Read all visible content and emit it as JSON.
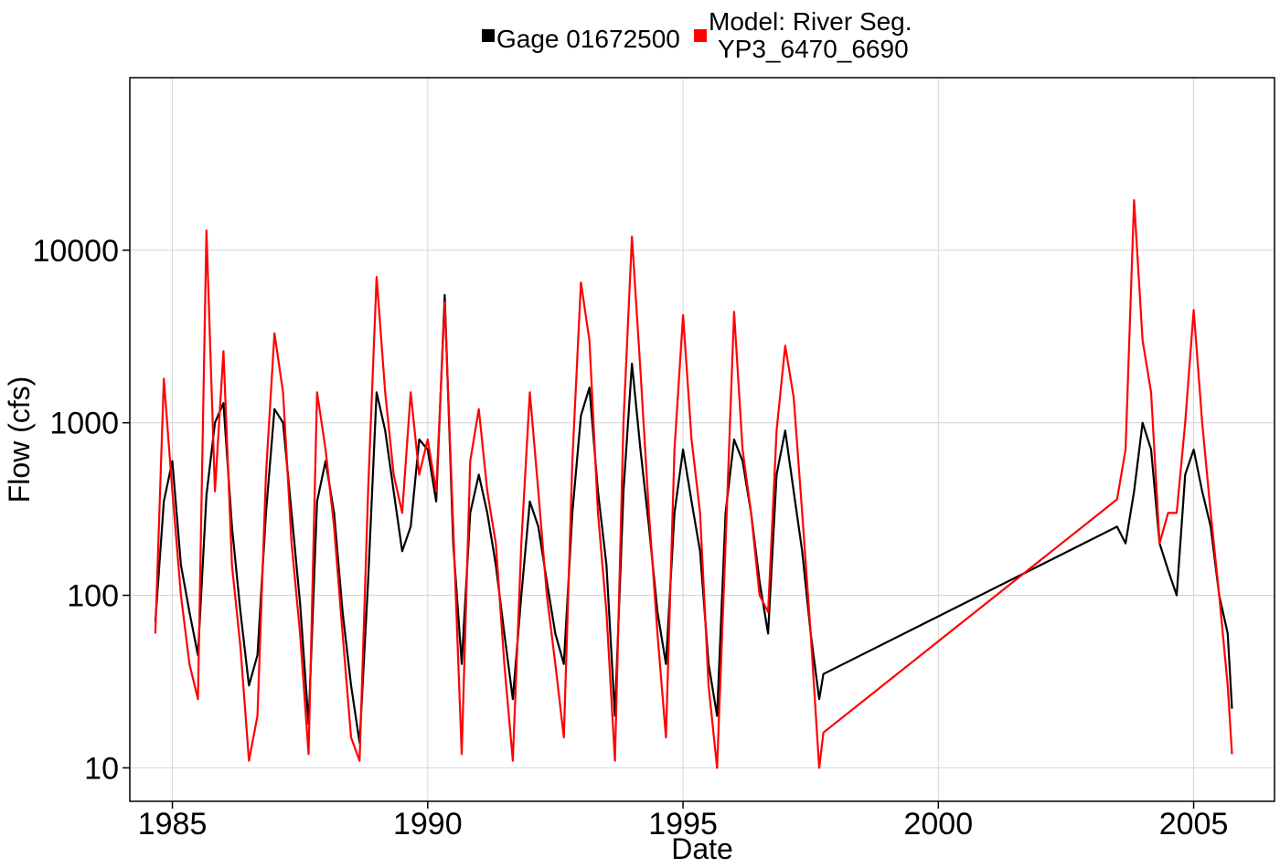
{
  "chart_data": {
    "type": "line",
    "title": "",
    "xlabel": "Date",
    "ylabel": "Flow (cfs)",
    "x_ticks": [
      "1985",
      "1990",
      "1995",
      "2000",
      "2005"
    ],
    "y_ticks": [
      "10",
      "100",
      "1000",
      "10000"
    ],
    "y_scale": "log",
    "ylim": [
      6.4,
      100000
    ],
    "xlim": [
      "1984-03-01",
      "2006-08-01"
    ],
    "grid": true,
    "legend_position": "top",
    "series": [
      {
        "name": "Gage 01672500",
        "color": "#000000",
        "x": [
          "1984-09-01",
          "1984-11-01",
          "1985-01-01",
          "1985-03-01",
          "1985-05-01",
          "1985-07-01",
          "1985-09-01",
          "1985-11-01",
          "1986-01-01",
          "1986-03-01",
          "1986-05-01",
          "1986-07-01",
          "1986-09-01",
          "1986-11-01",
          "1987-01-01",
          "1987-03-01",
          "1987-05-01",
          "1987-07-01",
          "1987-09-01",
          "1987-11-01",
          "1988-01-01",
          "1988-03-01",
          "1988-05-01",
          "1988-07-01",
          "1988-09-01",
          "1988-11-01",
          "1989-01-01",
          "1989-03-01",
          "1989-05-01",
          "1989-07-01",
          "1989-09-01",
          "1989-11-01",
          "1990-01-01",
          "1990-03-01",
          "1990-05-01",
          "1990-07-01",
          "1990-09-01",
          "1990-11-01",
          "1991-01-01",
          "1991-03-01",
          "1991-05-01",
          "1991-07-01",
          "1991-09-01",
          "1991-11-01",
          "1992-01-01",
          "1992-03-01",
          "1992-05-01",
          "1992-07-01",
          "1992-09-01",
          "1992-11-01",
          "1993-01-01",
          "1993-03-01",
          "1993-05-01",
          "1993-07-01",
          "1993-09-01",
          "1993-11-01",
          "1994-01-01",
          "1994-03-01",
          "1994-05-01",
          "1994-07-01",
          "1994-09-01",
          "1994-11-01",
          "1995-01-01",
          "1995-03-01",
          "1995-05-01",
          "1995-07-01",
          "1995-09-01",
          "1995-11-01",
          "1996-01-01",
          "1996-03-01",
          "1996-05-01",
          "1996-07-01",
          "1996-09-01",
          "1996-11-01",
          "1997-01-01",
          "1997-03-01",
          "1997-05-01",
          "1997-07-01",
          "1997-09-01",
          "1997-10-01",
          "2003-07-01",
          "2003-09-01",
          "2003-11-01",
          "2004-01-01",
          "2004-03-01",
          "2004-05-01",
          "2004-07-01",
          "2004-09-01",
          "2004-11-01",
          "2005-01-01",
          "2005-03-01",
          "2005-05-01",
          "2005-07-01",
          "2005-09-01",
          "2005-10-01"
        ],
        "y": [
          70,
          350,
          600,
          150,
          80,
          45,
          380,
          1000,
          1300,
          250,
          80,
          30,
          45,
          300,
          1200,
          1000,
          300,
          90,
          18,
          350,
          600,
          300,
          80,
          30,
          14,
          120,
          1500,
          900,
          400,
          180,
          250,
          800,
          700,
          350,
          5500,
          200,
          40,
          300,
          500,
          300,
          150,
          60,
          25,
          100,
          350,
          250,
          120,
          60,
          40,
          300,
          1100,
          1600,
          400,
          150,
          20,
          400,
          2200,
          700,
          250,
          80,
          40,
          300,
          700,
          350,
          180,
          40,
          20,
          300,
          800,
          600,
          300,
          120,
          60,
          500,
          900,
          400,
          180,
          60,
          25,
          35,
          250,
          200,
          400,
          1000,
          700,
          200,
          140,
          100,
          500,
          700,
          400,
          250,
          100,
          60,
          22
        ]
      },
      {
        "name": "Model: River Seg. YP3_6470_6690",
        "color": "#ff0000",
        "x": [
          "1984-09-01",
          "1984-11-01",
          "1985-01-01",
          "1985-03-01",
          "1985-05-01",
          "1985-07-01",
          "1985-09-01",
          "1985-11-01",
          "1986-01-01",
          "1986-03-01",
          "1986-05-01",
          "1986-07-01",
          "1986-09-01",
          "1986-11-01",
          "1987-01-01",
          "1987-03-01",
          "1987-05-01",
          "1987-07-01",
          "1987-09-01",
          "1987-11-01",
          "1988-01-01",
          "1988-03-01",
          "1988-05-01",
          "1988-07-01",
          "1988-09-01",
          "1988-11-01",
          "1989-01-01",
          "1989-03-01",
          "1989-05-01",
          "1989-07-01",
          "1989-09-01",
          "1989-11-01",
          "1990-01-01",
          "1990-03-01",
          "1990-05-01",
          "1990-07-01",
          "1990-09-01",
          "1990-11-01",
          "1991-01-01",
          "1991-03-01",
          "1991-05-01",
          "1991-07-01",
          "1991-09-01",
          "1991-11-01",
          "1992-01-01",
          "1992-03-01",
          "1992-05-01",
          "1992-07-01",
          "1992-09-01",
          "1992-11-01",
          "1993-01-01",
          "1993-03-01",
          "1993-05-01",
          "1993-07-01",
          "1993-09-01",
          "1993-11-01",
          "1994-01-01",
          "1994-03-01",
          "1994-05-01",
          "1994-07-01",
          "1994-09-01",
          "1994-11-01",
          "1995-01-01",
          "1995-03-01",
          "1995-05-01",
          "1995-07-01",
          "1995-09-01",
          "1995-11-01",
          "1996-01-01",
          "1996-03-01",
          "1996-05-01",
          "1996-07-01",
          "1996-09-01",
          "1996-11-01",
          "1997-01-01",
          "1997-03-01",
          "1997-05-01",
          "1997-07-01",
          "1997-09-01",
          "1997-10-01",
          "2003-07-01",
          "2003-09-01",
          "2003-11-01",
          "2004-01-01",
          "2004-03-01",
          "2004-05-01",
          "2004-07-01",
          "2004-09-01",
          "2004-11-01",
          "2005-01-01",
          "2005-03-01",
          "2005-05-01",
          "2005-07-01",
          "2005-09-01",
          "2005-10-01"
        ],
        "y": [
          60,
          1800,
          400,
          100,
          40,
          25,
          13000,
          400,
          2600,
          150,
          50,
          11,
          20,
          500,
          3300,
          1500,
          200,
          60,
          12,
          1500,
          700,
          250,
          60,
          15,
          11,
          400,
          7000,
          1500,
          500,
          300,
          1500,
          500,
          800,
          400,
          5000,
          250,
          12,
          600,
          1200,
          400,
          200,
          40,
          11,
          200,
          1500,
          400,
          100,
          40,
          15,
          600,
          6500,
          3000,
          300,
          80,
          11,
          1000,
          12000,
          2000,
          300,
          60,
          15,
          700,
          4200,
          800,
          300,
          30,
          10,
          200,
          4400,
          700,
          300,
          100,
          80,
          900,
          2800,
          1400,
          300,
          60,
          10,
          16,
          360,
          700,
          19500,
          3000,
          1500,
          200,
          300,
          300,
          1000,
          4500,
          1000,
          300,
          100,
          30,
          12
        ]
      }
    ]
  }
}
